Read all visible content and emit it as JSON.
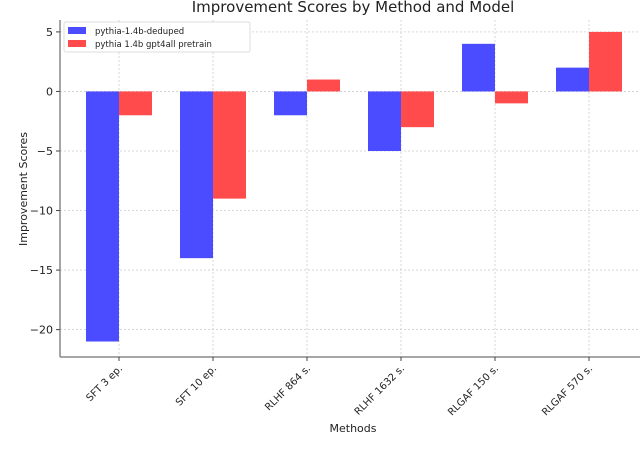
{
  "chart_data": {
    "type": "bar",
    "title": "Improvement Scores by Method and Model",
    "xlabel": "Methods",
    "ylabel": "Improvement Scores",
    "categories": [
      "SFT 3 ep.",
      "SFT 10 ep.",
      "RLHF 864 s.",
      "RLHF 1632 s.",
      "RLGAF 150 s.",
      "RLGAF 570 s."
    ],
    "series": [
      {
        "name": "pythia-1.4b-deduped",
        "color": "#4b4bff",
        "values": [
          -21,
          -14,
          -2,
          -5,
          4,
          2
        ]
      },
      {
        "name": "pythia 1.4b gpt4all pretrain",
        "color": "#ff4b4b",
        "values": [
          -2,
          -9,
          1,
          -3,
          -1,
          5
        ]
      }
    ],
    "ylim": [
      -22.3,
      6
    ],
    "yticks": [
      5,
      0,
      -5,
      -10,
      -15,
      -20
    ],
    "ytick_labels": [
      "5",
      "0",
      "−5",
      "−10",
      "−15",
      "−20"
    ],
    "grid": true,
    "legend_position": "top-left"
  }
}
